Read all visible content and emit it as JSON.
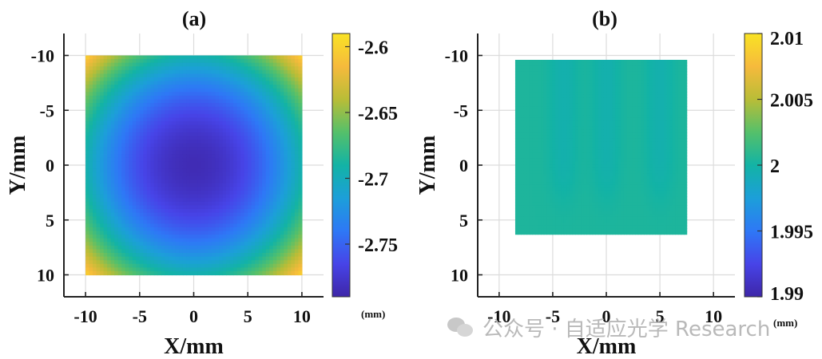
{
  "chart_data": [
    {
      "type": "heatmap",
      "title": "(a)",
      "xlabel": "X/mm",
      "ylabel": "Y/mm",
      "xlim": [
        -12,
        12
      ],
      "ylim": [
        -12,
        12
      ],
      "y_reversed": true,
      "grid": true,
      "xticks": [
        "-10",
        "-5",
        "0",
        "5",
        "10"
      ],
      "yticks": [
        "-10",
        "-5",
        "0",
        "5",
        "10"
      ],
      "data_extent": {
        "x": [
          -10,
          10
        ],
        "y": [
          -10,
          10
        ]
      },
      "pattern": "radial bowl, minimum at center",
      "center_value": -2.785,
      "corner_value": -2.6,
      "colorbar": {
        "range": [
          -2.79,
          -2.59
        ],
        "ticks": [
          "-2.6",
          "-2.65",
          "-2.7",
          "-2.75"
        ],
        "tick_values": [
          -2.6,
          -2.65,
          -2.7,
          -2.75
        ],
        "unit": "(mm)"
      }
    },
    {
      "type": "heatmap",
      "title": "(b)",
      "xlabel": "X/mm",
      "ylabel": "Y/mm",
      "xlim": [
        -12,
        12
      ],
      "ylim": [
        -12,
        12
      ],
      "y_reversed": true,
      "grid": true,
      "xticks": [
        "-10",
        "-5",
        "0",
        "5",
        "10"
      ],
      "yticks": [
        "-10",
        "-5",
        "0",
        "5",
        "10"
      ],
      "data_extent": {
        "x": [
          -8.5,
          7.5
        ],
        "y": [
          -9.6,
          6.3
        ]
      },
      "pattern": "nearly uniform with vertical streaks",
      "base_value": 2.0004,
      "streak_x": [
        -4,
        0,
        5
      ],
      "streak_value": 1.9996,
      "colorbar": {
        "range": [
          1.99,
          2.01
        ],
        "ticks": [
          "2.01",
          "2.005",
          "2",
          "1.995",
          "1.99"
        ],
        "tick_values": [
          2.01,
          2.005,
          2.0,
          1.995,
          1.99
        ],
        "unit": "(mm)"
      }
    }
  ],
  "colormap": [
    "#3e26a8",
    "#4744e8",
    "#2e78f6",
    "#1c9fd9",
    "#13b3a5",
    "#55c06a",
    "#b9bd37",
    "#f6ba3c",
    "#f9e324"
  ],
  "watermark": "公众号 · 自适应光学 Research"
}
